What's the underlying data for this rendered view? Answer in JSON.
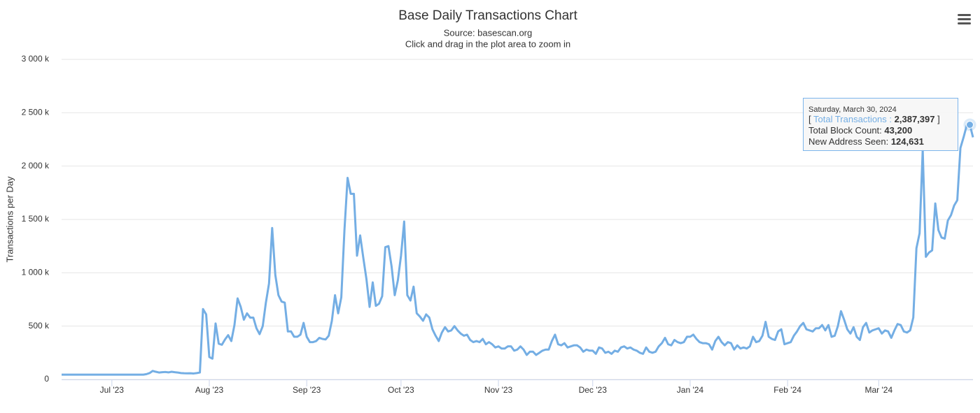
{
  "chart_data": {
    "type": "line",
    "title": "Base Daily Transactions Chart",
    "subtitle": "Source: basescan.org",
    "zoom_hint": "Click and drag in the plot area to zoom in",
    "y_label": "Transactions per Day",
    "xlim": [
      0,
      290
    ],
    "xticks": [
      {
        "value": 16,
        "label": "Jul '23"
      },
      {
        "value": 47,
        "label": "Aug '23"
      },
      {
        "value": 78,
        "label": "Sep '23"
      },
      {
        "value": 108,
        "label": "Oct '23"
      },
      {
        "value": 139,
        "label": "Nov '23"
      },
      {
        "value": 169,
        "label": "Dec '23"
      },
      {
        "value": 200,
        "label": "Jan '24"
      },
      {
        "value": 231,
        "label": "Feb '24"
      },
      {
        "value": 260,
        "label": "Mar '24"
      }
    ],
    "ylim": [
      0,
      3000000
    ],
    "yticks": [
      {
        "value": 0,
        "label": "0"
      },
      {
        "value": 500000,
        "label": "500 k"
      },
      {
        "value": 1000000,
        "label": "1 000 k"
      },
      {
        "value": 1500000,
        "label": "1 500 k"
      },
      {
        "value": 2000000,
        "label": "2 000 k"
      },
      {
        "value": 2500000,
        "label": "2 500 k"
      },
      {
        "value": 3000000,
        "label": "3 000 k"
      }
    ],
    "grid": true,
    "series": [
      {
        "name": "Total Transactions",
        "color": "#74aee4",
        "values": [
          45000,
          45000,
          45000,
          45000,
          45000,
          45000,
          45000,
          45000,
          45000,
          45000,
          45000,
          45000,
          45000,
          45000,
          45000,
          45000,
          45000,
          45000,
          45000,
          45000,
          45000,
          45000,
          45000,
          45000,
          45000,
          45000,
          45000,
          50000,
          60000,
          80000,
          72000,
          65000,
          68000,
          70000,
          66000,
          72000,
          68000,
          65000,
          60000,
          58000,
          57000,
          58000,
          56000,
          60000,
          65000,
          660000,
          610000,
          210000,
          195000,
          525000,
          335000,
          325000,
          375000,
          415000,
          360000,
          510000,
          760000,
          680000,
          560000,
          620000,
          580000,
          580000,
          480000,
          425000,
          500000,
          720000,
          900000,
          1420000,
          980000,
          790000,
          730000,
          720000,
          450000,
          450000,
          400000,
          400000,
          420000,
          530000,
          400000,
          350000,
          350000,
          360000,
          390000,
          380000,
          375000,
          410000,
          550000,
          790000,
          620000,
          770000,
          1400000,
          1890000,
          1740000,
          1740000,
          1160000,
          1350000,
          1140000,
          940000,
          680000,
          910000,
          690000,
          710000,
          780000,
          1240000,
          1250000,
          1060000,
          790000,
          930000,
          1160000,
          1480000,
          790000,
          740000,
          870000,
          620000,
          590000,
          550000,
          610000,
          580000,
          470000,
          410000,
          360000,
          440000,
          490000,
          450000,
          460000,
          500000,
          460000,
          430000,
          410000,
          420000,
          370000,
          350000,
          360000,
          350000,
          380000,
          330000,
          350000,
          330000,
          300000,
          310000,
          290000,
          290000,
          310000,
          310000,
          270000,
          280000,
          310000,
          280000,
          230000,
          260000,
          260000,
          230000,
          250000,
          270000,
          280000,
          280000,
          360000,
          420000,
          330000,
          320000,
          340000,
          300000,
          310000,
          320000,
          320000,
          300000,
          260000,
          280000,
          270000,
          270000,
          240000,
          300000,
          290000,
          250000,
          260000,
          240000,
          270000,
          260000,
          300000,
          310000,
          290000,
          300000,
          280000,
          270000,
          250000,
          240000,
          300000,
          260000,
          250000,
          260000,
          310000,
          340000,
          390000,
          330000,
          320000,
          370000,
          350000,
          340000,
          350000,
          400000,
          400000,
          420000,
          380000,
          350000,
          340000,
          340000,
          330000,
          280000,
          360000,
          400000,
          350000,
          320000,
          350000,
          340000,
          280000,
          320000,
          290000,
          300000,
          290000,
          310000,
          400000,
          350000,
          360000,
          410000,
          540000,
          400000,
          380000,
          370000,
          450000,
          470000,
          330000,
          340000,
          350000,
          410000,
          450000,
          500000,
          530000,
          470000,
          460000,
          450000,
          480000,
          480000,
          510000,
          460000,
          510000,
          400000,
          410000,
          500000,
          640000,
          560000,
          470000,
          430000,
          490000,
          400000,
          370000,
          490000,
          530000,
          440000,
          460000,
          470000,
          480000,
          430000,
          460000,
          450000,
          390000,
          460000,
          520000,
          510000,
          450000,
          440000,
          460000,
          580000,
          1230000,
          1370000,
          2150000,
          1150000,
          1190000,
          1210000,
          1650000,
          1400000,
          1330000,
          1320000,
          1490000,
          1540000,
          1630000,
          1680000,
          2170000,
          2270000,
          2380000,
          2387397,
          2270000
        ]
      }
    ],
    "highlight_index": 289,
    "tooltip": {
      "date": "Saturday, March 30, 2024",
      "open": "[",
      "series_label": "Total Transactions :",
      "value_label": "2,387,397",
      "close": "]",
      "block_label": "Total Block Count:",
      "block_value": "43,200",
      "address_label": "New Address Seen:",
      "address_value": "124,631"
    }
  }
}
